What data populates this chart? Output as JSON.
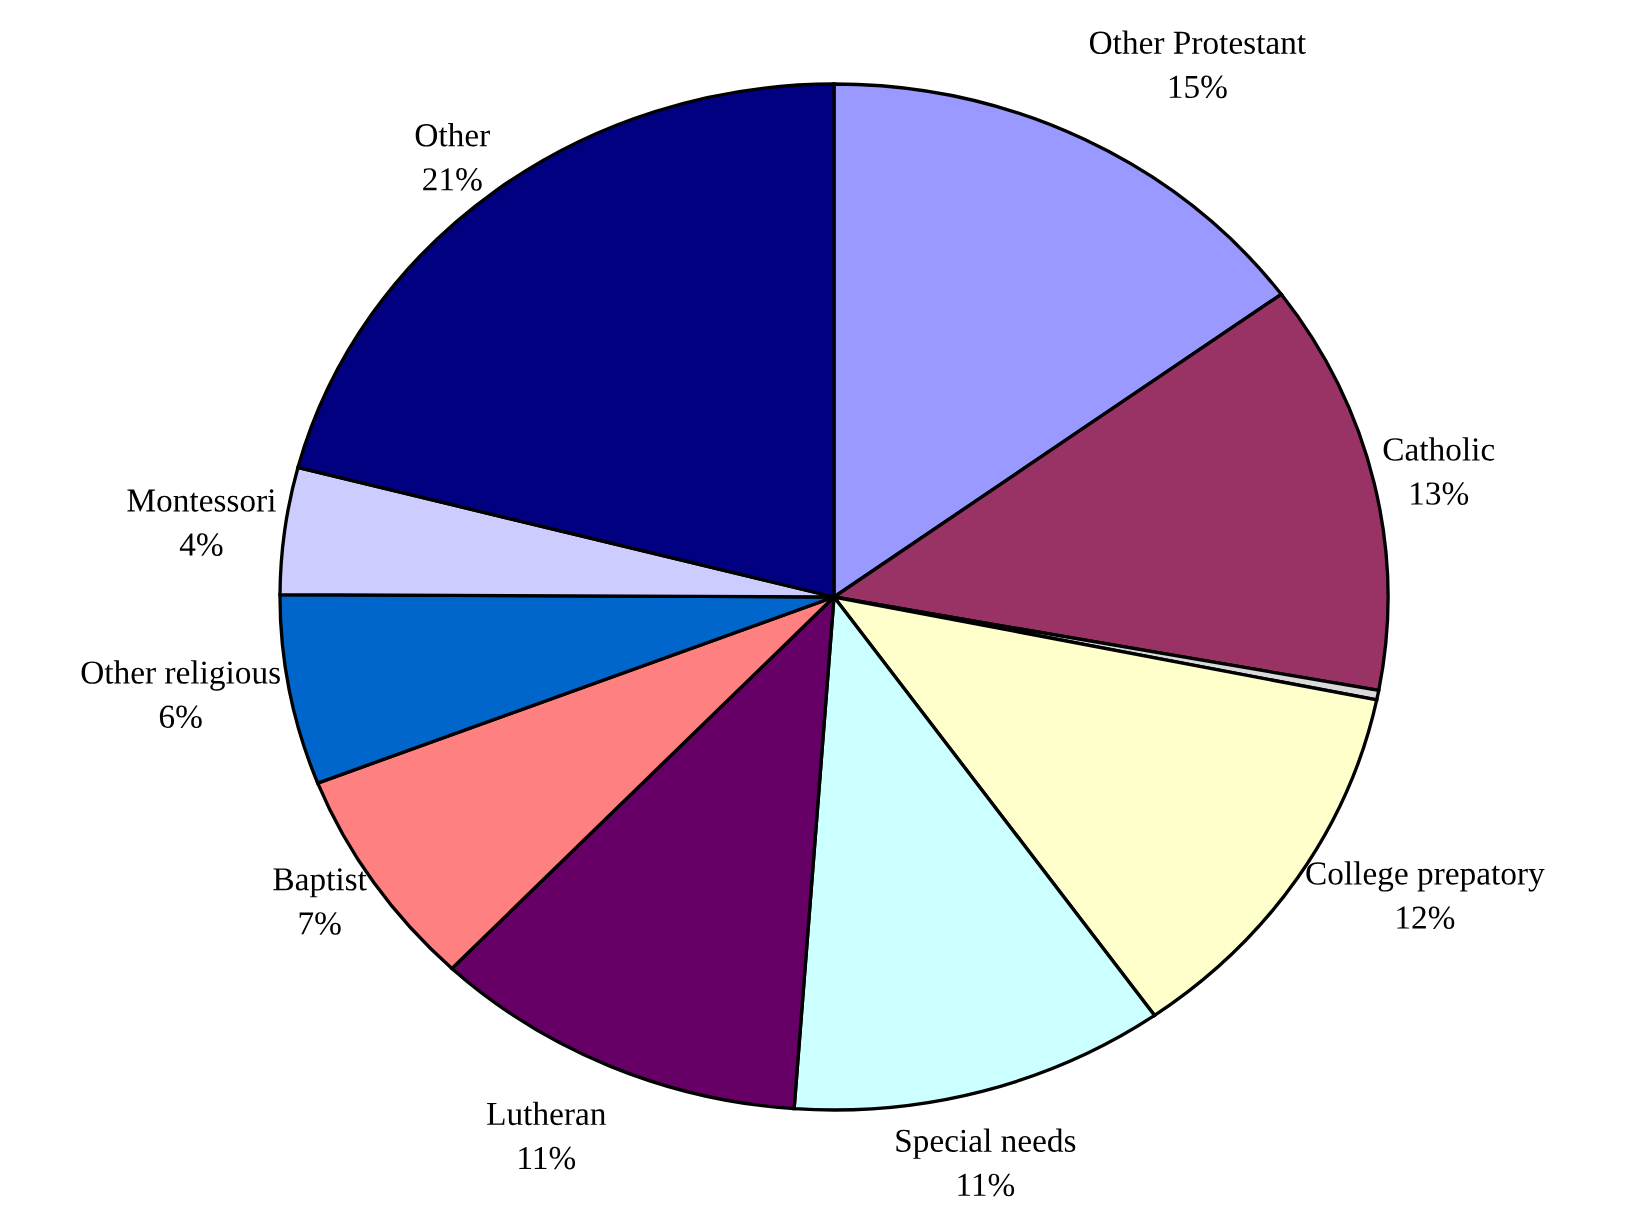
{
  "chart_data": {
    "type": "pie",
    "categories": [
      "Other Protestant",
      "Catholic",
      null,
      "College prepatory",
      "Special needs",
      "Lutheran",
      "Baptist",
      "Other religious",
      "Montessori",
      "Other"
    ],
    "values": [
      15,
      13,
      0.3,
      12,
      11,
      11,
      7,
      6,
      4,
      21
    ],
    "value_labels": [
      "15%",
      "13%",
      null,
      "12%",
      "11%",
      "11%",
      "7%",
      "6%",
      "4%",
      "21%"
    ],
    "colors": [
      "#9999ff",
      "#993366",
      "#d9d9d9",
      "#ffffcc",
      "#ccffff",
      "#660066",
      "#ff8080",
      "#0066cc",
      "#ccccff",
      "#000080"
    ]
  }
}
